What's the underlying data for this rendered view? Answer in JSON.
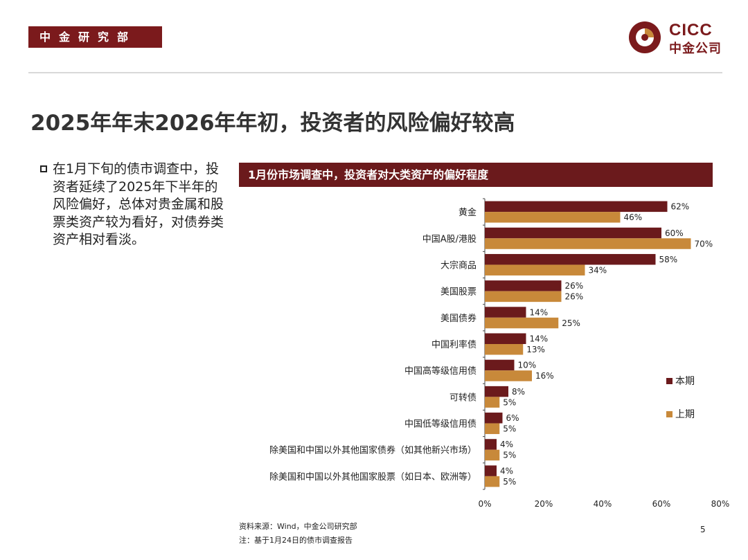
{
  "header": {
    "department": "中金研究部",
    "logo_en": "CICC",
    "logo_cn": "中金公司",
    "brand_color": "#7b1a1c"
  },
  "page": {
    "title": "2025年年末2026年年初，投资者的风险偏好较高",
    "body": "在1月下旬的债市调查中，投资者延续了2025年下半年的风险偏好，总体对贵金属和股票类资产较为看好，对债券类资产相对看淡。",
    "page_number": "5"
  },
  "chart_data": {
    "type": "bar",
    "orientation": "horizontal",
    "title": "1月份市场调查中，投资者对大类资产的偏好程度",
    "categories": [
      "黄金",
      "中国A股/港股",
      "大宗商品",
      "美国股票",
      "美国债券",
      "中国利率债",
      "中国高等级信用债",
      "可转债",
      "中国低等级信用债",
      "除美国和中国以外其他国家债券（如其他新兴市场）",
      "除美国和中国以外其他国家股票（如日本、欧洲等）"
    ],
    "series": [
      {
        "name": "本期",
        "color": "#6b1a1c",
        "values": [
          62,
          60,
          58,
          26,
          14,
          14,
          10,
          8,
          6,
          4,
          4
        ]
      },
      {
        "name": "上期",
        "color": "#c8893a",
        "values": [
          46,
          70,
          34,
          26,
          25,
          13,
          16,
          5,
          5,
          5,
          5
        ]
      }
    ],
    "xlim": [
      0,
      80
    ],
    "xticks": [
      0,
      20,
      40,
      60,
      80
    ],
    "tick_suffix": "%",
    "legend_position": "right",
    "grid": false
  },
  "footer": {
    "source": "资料来源：Wind，中金公司研究部",
    "note": "注：基于1月24日的债市调查报告"
  }
}
